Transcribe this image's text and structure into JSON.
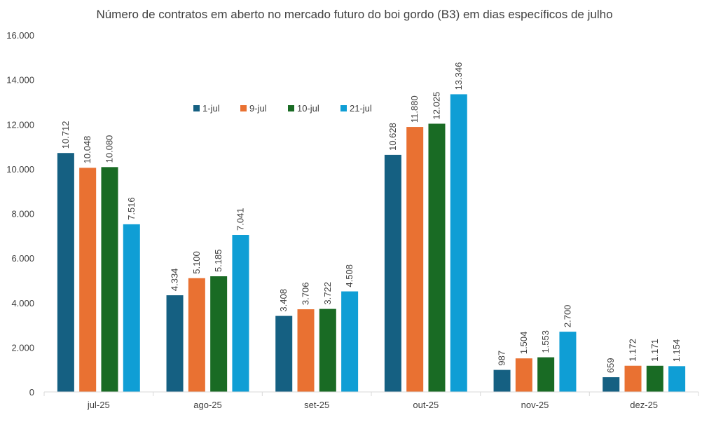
{
  "chart_data": {
    "type": "bar",
    "title": "Número de contratos em aberto no mercado futuro do boi gordo (B3) em dias específicos de julho",
    "xlabel": "",
    "ylabel": "",
    "ylim": [
      0,
      16000
    ],
    "yticks": [
      0,
      2000,
      4000,
      6000,
      8000,
      10000,
      12000,
      14000,
      16000
    ],
    "ytick_labels": [
      "0",
      "2.000",
      "4.000",
      "6.000",
      "8.000",
      "10.000",
      "12.000",
      "14.000",
      "16.000"
    ],
    "grid": false,
    "legend_position": "top-left inside plot",
    "categories": [
      "jul-25",
      "ago-25",
      "set-25",
      "out-25",
      "nov-25",
      "dez-25"
    ],
    "series": [
      {
        "name": "1-jul",
        "color": "#156082",
        "values": [
          10712,
          4334,
          3408,
          10628,
          987,
          659
        ],
        "labels": [
          "10.712",
          "4.334",
          "3.408",
          "10.628",
          "987",
          "659"
        ]
      },
      {
        "name": "9-jul",
        "color": "#E97132",
        "values": [
          10048,
          5100,
          3706,
          11880,
          1504,
          1172
        ],
        "labels": [
          "10.048",
          "5.100",
          "3.706",
          "11.880",
          "1.504",
          "1.172"
        ]
      },
      {
        "name": "10-jul",
        "color": "#196B24",
        "values": [
          10080,
          5185,
          3722,
          12025,
          1553,
          1171
        ],
        "labels": [
          "10.080",
          "5.185",
          "3.722",
          "12.025",
          "1.553",
          "1.171"
        ]
      },
      {
        "name": "21-jul",
        "color": "#0F9ED5",
        "values": [
          7516,
          7041,
          4508,
          13346,
          2700,
          1154
        ],
        "labels": [
          "7.516",
          "7.041",
          "4.508",
          "13.346",
          "2.700",
          "1.154"
        ]
      }
    ]
  }
}
